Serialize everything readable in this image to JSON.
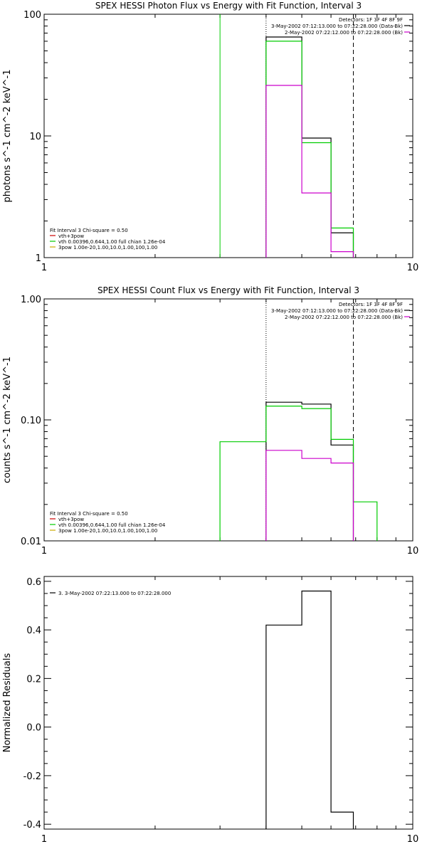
{
  "chart_data": [
    {
      "type": "line",
      "title": "SPEX HESSI Photon Flux vs Energy with Fit Function, Interval 3",
      "xlabel": "",
      "ylabel": "photons s^-1 cm^-2 keV^-1",
      "xscale": "log",
      "yscale": "log",
      "xlim": [
        1,
        10
      ],
      "ylim": [
        1,
        100
      ],
      "x_ticks": [
        "1",
        "10"
      ],
      "y_ticks": [
        {
          "value": 1,
          "label": "1"
        },
        {
          "value": 10,
          "label": "10"
        },
        {
          "value": 100,
          "label": "100"
        }
      ],
      "vlines": [
        {
          "x": 3.0,
          "style": "solid",
          "color": "#00cc00"
        },
        {
          "x": 4.0,
          "style": "dotted",
          "color": "#000000"
        },
        {
          "x": 6.9,
          "style": "dashed",
          "color": "#000000"
        }
      ],
      "series": [
        {
          "color": "#000000",
          "bins": [
            [
              4.0,
              5.0,
              65
            ],
            [
              5.0,
              6.0,
              9.6
            ],
            [
              6.0,
              6.9,
              1.6
            ]
          ]
        },
        {
          "color": "#00cc00",
          "bins": [
            [
              4.0,
              5.0,
              60
            ],
            [
              5.0,
              6.0,
              8.8
            ],
            [
              6.0,
              6.9,
              1.75
            ]
          ]
        },
        {
          "color": "#cc00cc",
          "bins": [
            [
              4.0,
              5.0,
              26
            ],
            [
              5.0,
              6.0,
              3.4
            ],
            [
              6.0,
              6.9,
              1.12
            ]
          ]
        }
      ],
      "legend_right": [
        {
          "text": "Detectors: 1F 3F 4F 8F 9F",
          "color": ""
        },
        {
          "text": "3-May-2002 07:12:13.000 to 07:22:28.000 (Data-Bk)",
          "color": "#000000"
        },
        {
          "text": "2-May-2002 07:22:12.000 to 07:22:28.000 (Bk)",
          "color": "#cc00cc"
        }
      ],
      "legend_left": [
        {
          "text": "Fit Interval 3   Chi-square = 0.50",
          "color": ""
        },
        {
          "text": "vth+3pow",
          "color": "#cc0000"
        },
        {
          "text": "vth 0.00396,0.644,1.00  full chian 1.26e-04",
          "color": "#00cc00"
        },
        {
          "text": "3pow 1.00e-20,1.00,10.0,1.00,100,1.00",
          "color": "#ccaa00"
        }
      ]
    },
    {
      "type": "line",
      "title": "SPEX HESSI Count Flux vs Energy with Fit Function, Interval 3",
      "xlabel": "",
      "ylabel": "counts s^-1 cm^-2 keV^-1",
      "xscale": "log",
      "yscale": "log",
      "xlim": [
        1,
        10
      ],
      "ylim": [
        0.01,
        1
      ],
      "x_ticks": [
        "1",
        "10"
      ],
      "y_ticks": [
        {
          "value": 0.01,
          "label": "0.01"
        },
        {
          "value": 0.1,
          "label": "0.10"
        },
        {
          "value": 1,
          "label": "1.00"
        }
      ],
      "vlines": [
        {
          "x": 4.0,
          "style": "dotted",
          "color": "#000000"
        },
        {
          "x": 6.9,
          "style": "dashed",
          "color": "#000000"
        }
      ],
      "series": [
        {
          "color": "#000000",
          "bins": [
            [
              4.0,
              5.0,
              0.14
            ],
            [
              5.0,
              6.0,
              0.135
            ],
            [
              6.0,
              6.9,
              0.062
            ]
          ]
        },
        {
          "color": "#00cc00",
          "bins": [
            [
              3.0,
              4.0,
              0.066
            ],
            [
              4.0,
              5.0,
              0.13
            ],
            [
              5.0,
              6.0,
              0.124
            ],
            [
              6.0,
              6.9,
              0.069
            ],
            [
              6.9,
              8.0,
              0.021
            ]
          ]
        },
        {
          "color": "#cc00cc",
          "bins": [
            [
              4.0,
              5.0,
              0.056
            ],
            [
              5.0,
              6.0,
              0.048
            ],
            [
              6.0,
              6.9,
              0.044
            ]
          ]
        }
      ],
      "legend_right": [
        {
          "text": "Detectors: 1F 3F 4F 8F 9F",
          "color": ""
        },
        {
          "text": "3-May-2002 07:12:13.000 to 07:22:28.000 (Data-Bk)",
          "color": "#000000"
        },
        {
          "text": "2-May-2002 07:22:12.000 to 07:22:28.000 (Bk)",
          "color": "#cc00cc"
        }
      ],
      "legend_left": [
        {
          "text": "Fit Interval 3   Chi-square = 0.50",
          "color": ""
        },
        {
          "text": "vth+3pow",
          "color": "#cc0000"
        },
        {
          "text": "vth 0.00396,0.644,1.00  full chian 1.26e-04",
          "color": "#00cc00"
        },
        {
          "text": "3pow 1.00e-20,1.00,10.0,1.00,100,1.00",
          "color": "#ccaa00"
        }
      ]
    },
    {
      "type": "line",
      "title": "",
      "xlabel": "",
      "ylabel": "Normalized Residuals",
      "xscale": "log",
      "yscale": "linear",
      "xlim": [
        1,
        10
      ],
      "ylim": [
        -0.42,
        0.62
      ],
      "x_ticks": [
        "1",
        "10"
      ],
      "y_ticks": [
        {
          "value": 0.6,
          "label": "0.6"
        },
        {
          "value": 0.4,
          "label": "0.4"
        },
        {
          "value": 0.2,
          "label": "0.2"
        },
        {
          "value": 0.0,
          "label": "0.0"
        },
        {
          "value": -0.2,
          "label": "-0.2"
        },
        {
          "value": -0.4,
          "label": "-0.4"
        }
      ],
      "vlines": [],
      "series": [
        {
          "color": "#000000",
          "bins": [
            [
              4.0,
              5.0,
              0.42
            ],
            [
              5.0,
              6.0,
              0.56
            ],
            [
              6.0,
              6.9,
              -0.35
            ]
          ]
        }
      ],
      "legend_right": [],
      "legend_left": [
        {
          "text": "3. 3-May-2002 07:22:13.000 to 07:22:28.000",
          "color": "#000000"
        }
      ]
    }
  ]
}
